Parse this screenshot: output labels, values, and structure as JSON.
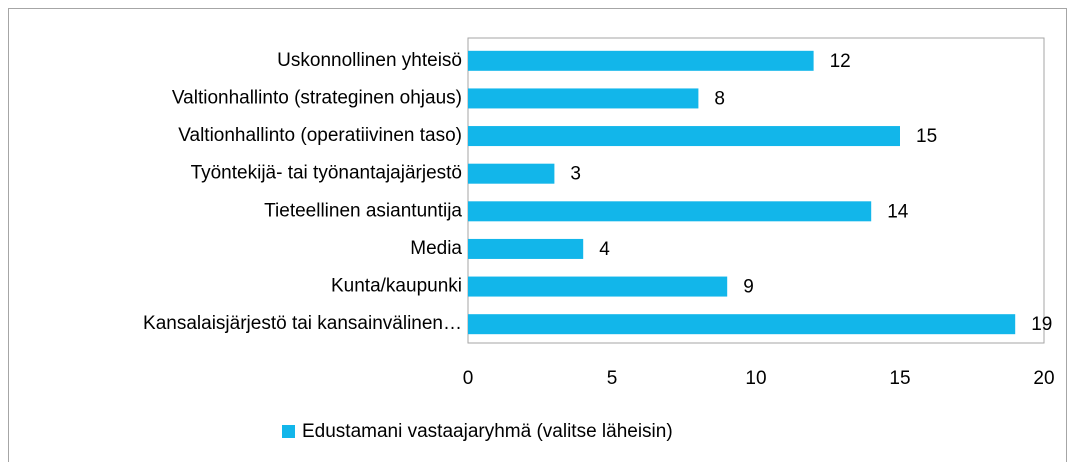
{
  "chart_data": {
    "type": "bar",
    "orientation": "horizontal",
    "categories": [
      "Uskonnollinen yhteisö",
      "Valtionhallinto (strateginen ohjaus)",
      "Valtionhallinto (operatiivinen taso)",
      "Työntekijä- tai työnantajajärjestö",
      "Tieteellinen asiantuntija",
      "Media",
      "Kunta/kaupunki",
      "Kansalaisjärjestö tai kansainvälinen…"
    ],
    "series": [
      {
        "name": "Edustamani vastaajaryhmä (valitse läheisin)",
        "color": "#12b6ea",
        "values": [
          12,
          8,
          15,
          3,
          14,
          4,
          9,
          19
        ]
      }
    ],
    "xlim": [
      0,
      20
    ],
    "xticks": [
      0,
      5,
      10,
      15,
      20
    ],
    "legend": "bottom"
  }
}
